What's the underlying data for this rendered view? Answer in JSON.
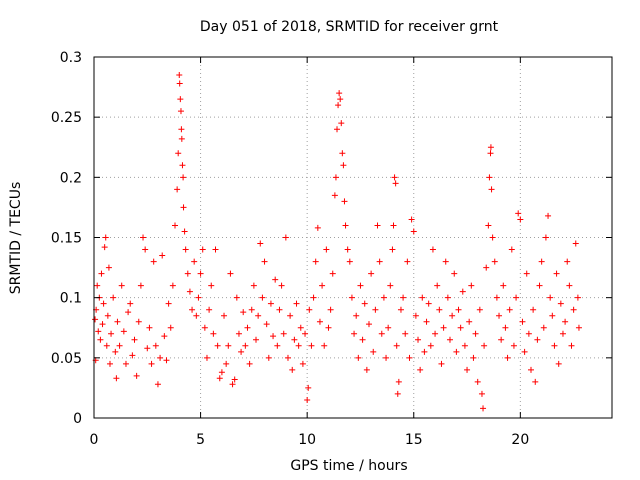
{
  "chart_data": {
    "type": "scatter",
    "title": "Day 051 of 2018, SRMTID for receiver grnt",
    "xlabel": "GPS time / hours",
    "ylabel": "SRMTID / TECUs",
    "xlim": [
      0,
      24.3
    ],
    "ylim": [
      0,
      0.3
    ],
    "xticks": [
      0,
      5,
      10,
      15,
      20
    ],
    "xtick_labels": [
      "0",
      "5",
      "10",
      "15",
      "20"
    ],
    "yticks": [
      0,
      0.05,
      0.1,
      0.15,
      0.2,
      0.25,
      0.3
    ],
    "ytick_labels": [
      "0",
      "0.05",
      "0.1",
      "0.15",
      "0.2",
      "0.25",
      "0.3"
    ],
    "grid": true,
    "marker": "+",
    "color": "#ff0000",
    "series": [
      {
        "name": "SRMTID",
        "points": [
          [
            0.05,
            0.082
          ],
          [
            0.08,
            0.048
          ],
          [
            0.1,
            0.09
          ],
          [
            0.15,
            0.11
          ],
          [
            0.2,
            0.072
          ],
          [
            0.25,
            0.1
          ],
          [
            0.3,
            0.065
          ],
          [
            0.35,
            0.12
          ],
          [
            0.4,
            0.078
          ],
          [
            0.45,
            0.095
          ],
          [
            0.5,
            0.142
          ],
          [
            0.55,
            0.15
          ],
          [
            0.6,
            0.06
          ],
          [
            0.65,
            0.085
          ],
          [
            0.7,
            0.125
          ],
          [
            0.75,
            0.045
          ],
          [
            0.8,
            0.07
          ],
          [
            0.9,
            0.1
          ],
          [
            1.0,
            0.055
          ],
          [
            1.05,
            0.033
          ],
          [
            1.1,
            0.08
          ],
          [
            1.2,
            0.06
          ],
          [
            1.3,
            0.11
          ],
          [
            1.4,
            0.072
          ],
          [
            1.5,
            0.045
          ],
          [
            1.6,
            0.088
          ],
          [
            1.7,
            0.095
          ],
          [
            1.8,
            0.052
          ],
          [
            1.9,
            0.065
          ],
          [
            2.0,
            0.035
          ],
          [
            2.1,
            0.08
          ],
          [
            2.2,
            0.11
          ],
          [
            2.3,
            0.15
          ],
          [
            2.4,
            0.14
          ],
          [
            2.5,
            0.058
          ],
          [
            2.6,
            0.075
          ],
          [
            2.7,
            0.045
          ],
          [
            2.8,
            0.13
          ],
          [
            2.9,
            0.06
          ],
          [
            3.0,
            0.028
          ],
          [
            3.1,
            0.05
          ],
          [
            3.2,
            0.135
          ],
          [
            3.3,
            0.068
          ],
          [
            3.4,
            0.048
          ],
          [
            3.5,
            0.095
          ],
          [
            3.6,
            0.075
          ],
          [
            3.7,
            0.11
          ],
          [
            3.8,
            0.16
          ],
          [
            3.9,
            0.19
          ],
          [
            3.95,
            0.22
          ],
          [
            4.0,
            0.285
          ],
          [
            4.02,
            0.278
          ],
          [
            4.05,
            0.265
          ],
          [
            4.08,
            0.255
          ],
          [
            4.1,
            0.24
          ],
          [
            4.12,
            0.232
          ],
          [
            4.15,
            0.21
          ],
          [
            4.18,
            0.2
          ],
          [
            4.2,
            0.175
          ],
          [
            4.25,
            0.155
          ],
          [
            4.3,
            0.14
          ],
          [
            4.4,
            0.12
          ],
          [
            4.5,
            0.105
          ],
          [
            4.6,
            0.09
          ],
          [
            4.7,
            0.13
          ],
          [
            4.8,
            0.085
          ],
          [
            4.9,
            0.1
          ],
          [
            5.0,
            0.12
          ],
          [
            5.1,
            0.14
          ],
          [
            5.2,
            0.075
          ],
          [
            5.3,
            0.05
          ],
          [
            5.4,
            0.09
          ],
          [
            5.5,
            0.11
          ],
          [
            5.6,
            0.07
          ],
          [
            5.7,
            0.14
          ],
          [
            5.8,
            0.06
          ],
          [
            5.9,
            0.033
          ],
          [
            6.0,
            0.038
          ],
          [
            6.1,
            0.085
          ],
          [
            6.2,
            0.045
          ],
          [
            6.3,
            0.06
          ],
          [
            6.4,
            0.12
          ],
          [
            6.5,
            0.028
          ],
          [
            6.6,
            0.032
          ],
          [
            6.7,
            0.1
          ],
          [
            6.8,
            0.07
          ],
          [
            6.9,
            0.055
          ],
          [
            7.0,
            0.088
          ],
          [
            7.1,
            0.06
          ],
          [
            7.2,
            0.075
          ],
          [
            7.3,
            0.045
          ],
          [
            7.4,
            0.09
          ],
          [
            7.5,
            0.11
          ],
          [
            7.6,
            0.065
          ],
          [
            7.7,
            0.085
          ],
          [
            7.8,
            0.145
          ],
          [
            7.9,
            0.1
          ],
          [
            8.0,
            0.13
          ],
          [
            8.1,
            0.078
          ],
          [
            8.2,
            0.05
          ],
          [
            8.3,
            0.095
          ],
          [
            8.4,
            0.068
          ],
          [
            8.5,
            0.115
          ],
          [
            8.6,
            0.06
          ],
          [
            8.7,
            0.09
          ],
          [
            8.8,
            0.11
          ],
          [
            8.9,
            0.07
          ],
          [
            9.0,
            0.15
          ],
          [
            9.1,
            0.05
          ],
          [
            9.2,
            0.085
          ],
          [
            9.3,
            0.04
          ],
          [
            9.4,
            0.065
          ],
          [
            9.5,
            0.095
          ],
          [
            9.6,
            0.06
          ],
          [
            9.7,
            0.075
          ],
          [
            9.8,
            0.045
          ],
          [
            9.9,
            0.07
          ],
          [
            10.0,
            0.015
          ],
          [
            10.05,
            0.025
          ],
          [
            10.1,
            0.09
          ],
          [
            10.2,
            0.06
          ],
          [
            10.3,
            0.1
          ],
          [
            10.4,
            0.13
          ],
          [
            10.5,
            0.158
          ],
          [
            10.6,
            0.08
          ],
          [
            10.7,
            0.11
          ],
          [
            10.8,
            0.06
          ],
          [
            10.9,
            0.14
          ],
          [
            11.0,
            0.075
          ],
          [
            11.1,
            0.09
          ],
          [
            11.2,
            0.12
          ],
          [
            11.3,
            0.185
          ],
          [
            11.35,
            0.2
          ],
          [
            11.4,
            0.24
          ],
          [
            11.45,
            0.26
          ],
          [
            11.5,
            0.27
          ],
          [
            11.55,
            0.265
          ],
          [
            11.6,
            0.245
          ],
          [
            11.65,
            0.22
          ],
          [
            11.7,
            0.21
          ],
          [
            11.75,
            0.18
          ],
          [
            11.8,
            0.16
          ],
          [
            11.9,
            0.14
          ],
          [
            12.0,
            0.13
          ],
          [
            12.1,
            0.1
          ],
          [
            12.2,
            0.07
          ],
          [
            12.3,
            0.085
          ],
          [
            12.4,
            0.05
          ],
          [
            12.5,
            0.11
          ],
          [
            12.6,
            0.065
          ],
          [
            12.7,
            0.095
          ],
          [
            12.8,
            0.04
          ],
          [
            12.9,
            0.078
          ],
          [
            13.0,
            0.12
          ],
          [
            13.1,
            0.055
          ],
          [
            13.2,
            0.09
          ],
          [
            13.3,
            0.16
          ],
          [
            13.4,
            0.13
          ],
          [
            13.5,
            0.07
          ],
          [
            13.6,
            0.1
          ],
          [
            13.7,
            0.05
          ],
          [
            13.8,
            0.075
          ],
          [
            13.9,
            0.11
          ],
          [
            14.0,
            0.14
          ],
          [
            14.05,
            0.16
          ],
          [
            14.1,
            0.2
          ],
          [
            14.15,
            0.195
          ],
          [
            14.2,
            0.06
          ],
          [
            14.25,
            0.02
          ],
          [
            14.3,
            0.03
          ],
          [
            14.4,
            0.09
          ],
          [
            14.5,
            0.1
          ],
          [
            14.6,
            0.07
          ],
          [
            14.7,
            0.13
          ],
          [
            14.8,
            0.05
          ],
          [
            14.9,
            0.165
          ],
          [
            15.0,
            0.155
          ],
          [
            15.1,
            0.085
          ],
          [
            15.2,
            0.065
          ],
          [
            15.3,
            0.04
          ],
          [
            15.4,
            0.1
          ],
          [
            15.5,
            0.055
          ],
          [
            15.6,
            0.08
          ],
          [
            15.7,
            0.095
          ],
          [
            15.8,
            0.06
          ],
          [
            15.9,
            0.14
          ],
          [
            16.0,
            0.07
          ],
          [
            16.1,
            0.11
          ],
          [
            16.2,
            0.09
          ],
          [
            16.3,
            0.045
          ],
          [
            16.4,
            0.075
          ],
          [
            16.5,
            0.13
          ],
          [
            16.6,
            0.1
          ],
          [
            16.7,
            0.065
          ],
          [
            16.8,
            0.085
          ],
          [
            16.9,
            0.12
          ],
          [
            17.0,
            0.055
          ],
          [
            17.1,
            0.09
          ],
          [
            17.2,
            0.075
          ],
          [
            17.3,
            0.105
          ],
          [
            17.4,
            0.06
          ],
          [
            17.5,
            0.04
          ],
          [
            17.6,
            0.08
          ],
          [
            17.7,
            0.11
          ],
          [
            17.8,
            0.05
          ],
          [
            17.9,
            0.07
          ],
          [
            18.0,
            0.03
          ],
          [
            18.1,
            0.09
          ],
          [
            18.2,
            0.02
          ],
          [
            18.25,
            0.008
          ],
          [
            18.3,
            0.06
          ],
          [
            18.4,
            0.125
          ],
          [
            18.5,
            0.16
          ],
          [
            18.55,
            0.2
          ],
          [
            18.6,
            0.22
          ],
          [
            18.62,
            0.225
          ],
          [
            18.65,
            0.19
          ],
          [
            18.7,
            0.15
          ],
          [
            18.8,
            0.13
          ],
          [
            18.9,
            0.1
          ],
          [
            19.0,
            0.085
          ],
          [
            19.1,
            0.065
          ],
          [
            19.2,
            0.11
          ],
          [
            19.3,
            0.075
          ],
          [
            19.4,
            0.05
          ],
          [
            19.5,
            0.09
          ],
          [
            19.6,
            0.14
          ],
          [
            19.7,
            0.06
          ],
          [
            19.8,
            0.1
          ],
          [
            19.9,
            0.17
          ],
          [
            20.0,
            0.165
          ],
          [
            20.1,
            0.08
          ],
          [
            20.2,
            0.055
          ],
          [
            20.3,
            0.12
          ],
          [
            20.4,
            0.07
          ],
          [
            20.5,
            0.04
          ],
          [
            20.6,
            0.09
          ],
          [
            20.7,
            0.03
          ],
          [
            20.8,
            0.065
          ],
          [
            20.9,
            0.11
          ],
          [
            21.0,
            0.13
          ],
          [
            21.1,
            0.075
          ],
          [
            21.2,
            0.15
          ],
          [
            21.3,
            0.168
          ],
          [
            21.4,
            0.1
          ],
          [
            21.5,
            0.085
          ],
          [
            21.6,
            0.06
          ],
          [
            21.7,
            0.12
          ],
          [
            21.8,
            0.045
          ],
          [
            21.9,
            0.095
          ],
          [
            22.0,
            0.07
          ],
          [
            22.1,
            0.08
          ],
          [
            22.2,
            0.13
          ],
          [
            22.3,
            0.11
          ],
          [
            22.4,
            0.06
          ],
          [
            22.5,
            0.09
          ],
          [
            22.6,
            0.145
          ],
          [
            22.7,
            0.1
          ],
          [
            22.75,
            0.075
          ]
        ]
      }
    ]
  }
}
